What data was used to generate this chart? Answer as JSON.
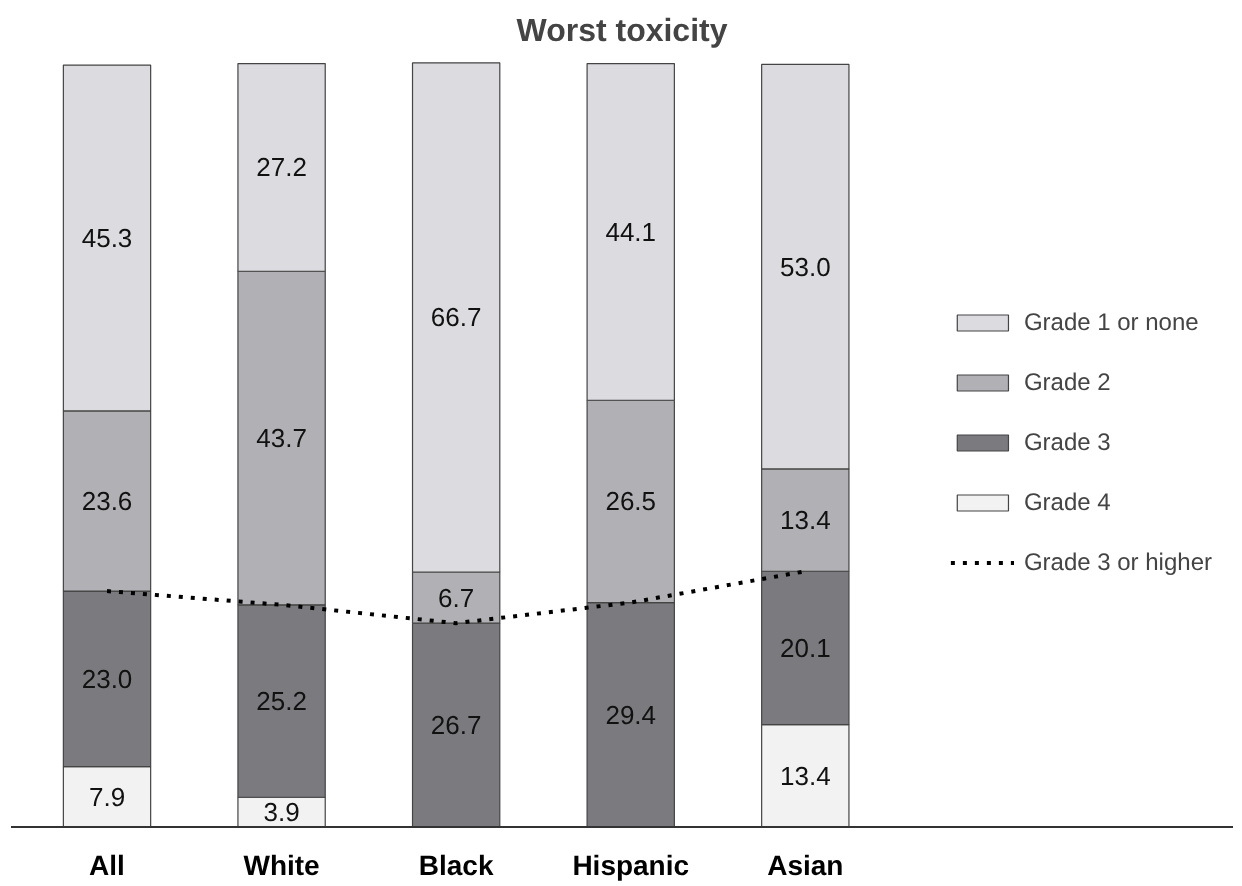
{
  "chart_data": {
    "type": "bar",
    "title": "Worst toxicity",
    "stacked": true,
    "legend": "right",
    "grid": false,
    "categories": [
      "All",
      "White",
      "Black",
      "Hispanic",
      "Asian"
    ],
    "series": [
      {
        "name": "Grade 4",
        "color": "#f2f2f2",
        "values": [
          7.9,
          3.9,
          0,
          0,
          13.4
        ],
        "value_labels": [
          "7.9",
          "3.9",
          null,
          null,
          "13.4"
        ]
      },
      {
        "name": "Grade 3",
        "color": "#7b7b7f",
        "values": [
          23.0,
          25.2,
          26.7,
          29.4,
          20.1
        ],
        "value_labels": [
          "23.0",
          "25.2",
          "26.7",
          "29.4",
          "20.1"
        ]
      },
      {
        "name": "Grade 2",
        "color": "#b1b1b5",
        "values": [
          23.6,
          43.7,
          6.7,
          26.5,
          13.4
        ],
        "value_labels": [
          "23.6",
          "43.7",
          "6.7",
          "26.5",
          "13.4"
        ]
      },
      {
        "name": "Grade 1 or none",
        "color": "#dcdce0",
        "values": [
          45.3,
          27.2,
          66.7,
          44.1,
          53.0
        ],
        "value_labels": [
          "45.3",
          "27.2",
          "66.7",
          "44.1",
          "53.0"
        ]
      },
      {
        "name": "Grade 3 or higher",
        "type": "line",
        "color": "#000000",
        "line_style": "dotted",
        "marker": "none",
        "values": [
          30.9,
          29.1,
          26.7,
          29.4,
          33.5
        ]
      }
    ]
  }
}
